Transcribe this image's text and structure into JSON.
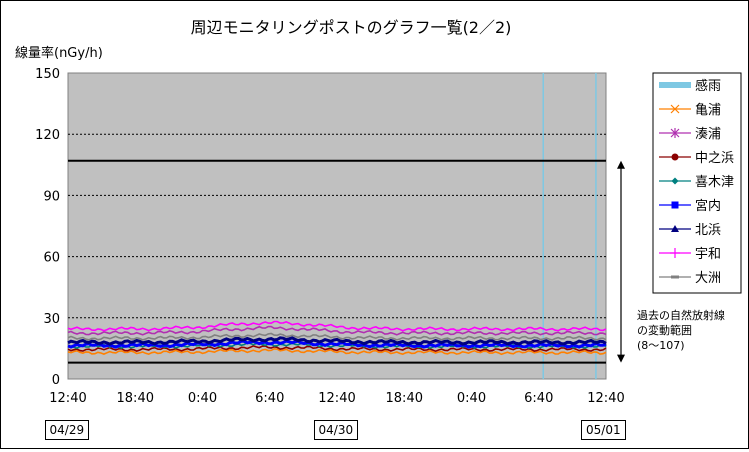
{
  "chart_data": {
    "type": "line",
    "title": "周辺モニタリングポストのグラフ一覧(2／2)",
    "ylabel": "線量率(nGy/h)",
    "ylim": [
      0,
      150
    ],
    "yticks": [
      0,
      30,
      60,
      90,
      120,
      150
    ],
    "grid": true,
    "legend_position": "right",
    "xticks": [
      "12:40",
      "18:40",
      "0:40",
      "6:40",
      "12:40",
      "18:40",
      "0:40",
      "6:40",
      "12:40"
    ],
    "x_range_hours": [
      0,
      48
    ],
    "dates": [
      {
        "label": "04/29",
        "at_hour": 0
      },
      {
        "label": "04/30",
        "at_hour": 24
      },
      {
        "label": "05/01",
        "at_hour": 48
      }
    ],
    "reference_lines": [
      {
        "value": 107
      },
      {
        "value": 8
      }
    ],
    "range_annotation": {
      "text": [
        "過去の自然放射線",
        "の変動範囲",
        "(8〜107)"
      ],
      "from": 8,
      "to": 107
    },
    "rain_events_hours": [
      42.4,
      47.1
    ],
    "series": [
      {
        "name": "感雨",
        "color": "#7ec8e3",
        "marker": "band",
        "rain": true
      },
      {
        "name": "亀浦",
        "color": "#ff8000",
        "marker": "x",
        "base": 13,
        "bump": 1.0
      },
      {
        "name": "湊浦",
        "color": "#b030b0",
        "marker": "asterisk",
        "base": 22.5,
        "bump": 2.5
      },
      {
        "name": "中之浜",
        "color": "#8b0000",
        "marker": "circle",
        "base": 14.5,
        "bump": 1.0
      },
      {
        "name": "喜木津",
        "color": "#008080",
        "marker": "diamond",
        "base": 16,
        "bump": 1.0
      },
      {
        "name": "宮内",
        "color": "#0000ff",
        "marker": "square",
        "base": 16.5,
        "bump": 1.5
      },
      {
        "name": "北浜",
        "color": "#000080",
        "marker": "triangle",
        "base": 18,
        "bump": 1.5
      },
      {
        "name": "宇和",
        "color": "#ff00ff",
        "marker": "plus",
        "base": 24.5,
        "bump": 3.0
      },
      {
        "name": "大洲",
        "color": "#808080",
        "marker": "dash",
        "base": 20,
        "bump": 1.5
      }
    ]
  }
}
